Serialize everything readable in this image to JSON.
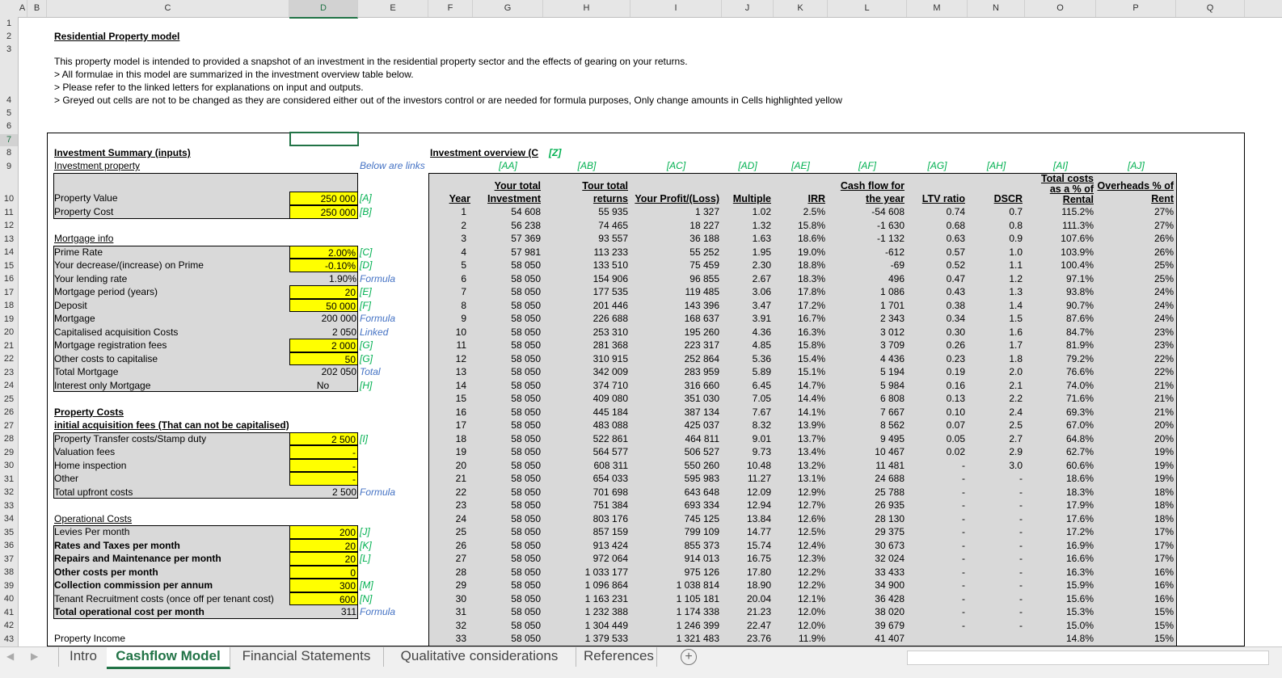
{
  "columns": [
    "A",
    "B",
    "C",
    "D",
    "E",
    "F",
    "G",
    "H",
    "I",
    "J",
    "K",
    "L",
    "M",
    "N",
    "O",
    "P",
    "Q"
  ],
  "title": "Residential Property model",
  "description": [
    "This property model is intended to provided a snapshot of an investment in the residential property sector and the effects of gearing on your returns.",
    "> All formulae in this model are summarized in the investment overview table below.",
    "> Please refer to the linked letters for explanations on input and outputs.",
    "> Greyed out cells are not to be changed as they are considered either out of the investors control or are needed for formula purposes, Only change amounts in Cells highlighted yellow"
  ],
  "left": {
    "heading": "Investment Summary (inputs)",
    "links_note": "Below are links",
    "rows": [
      {
        "row": 9,
        "label": "Investment property",
        "u": true
      },
      {
        "row": 10,
        "label": "Property Value",
        "value": "250 000",
        "note": "[A]",
        "y": true
      },
      {
        "row": 11,
        "label": "Property Cost",
        "value": "250 000",
        "note": "[B]",
        "y": true
      },
      {
        "row": 13,
        "label": "Mortgage info",
        "u": true
      },
      {
        "row": 14,
        "label": "Prime Rate",
        "value": "2.00%",
        "note": "[C]",
        "y": true
      },
      {
        "row": 15,
        "label": "Your decrease/(increase) on Prime",
        "value": "-0.10%",
        "note": "[D]",
        "y": true
      },
      {
        "row": 16,
        "label": "Your lending rate",
        "value": "1.90%",
        "note": "Formula",
        "nb": true
      },
      {
        "row": 17,
        "label": "Mortgage period (years)",
        "value": "20",
        "note": "[E]",
        "y": true
      },
      {
        "row": 18,
        "label": "Deposit",
        "value": "50 000",
        "note": "[F]",
        "y": true
      },
      {
        "row": 19,
        "label": "Mortgage",
        "value": "200 000",
        "note": "Formula",
        "nb": true
      },
      {
        "row": 20,
        "label": "Capitalised acquisition Costs",
        "value": "2 050",
        "note": "Linked",
        "nb": true
      },
      {
        "row": 21,
        "label": "Mortgage registration fees",
        "value": "2 000",
        "note": "[G]",
        "y": true
      },
      {
        "row": 22,
        "label": "Other costs to capitalise",
        "value": "50",
        "note": "[G]",
        "y": true
      },
      {
        "row": 23,
        "label": "Total Mortgage",
        "value": "202 050",
        "note": "Total",
        "nb": true
      },
      {
        "row": 24,
        "label": "Interest only Mortgage",
        "value": "No",
        "note": "[H]",
        "c": true
      },
      {
        "row": 26,
        "label": "Property Costs",
        "u": true,
        "b": true
      },
      {
        "row": 27,
        "label": "initial acquisition fees (That can not be capitalised)",
        "u": true
      },
      {
        "row": 28,
        "label": "Property Transfer costs/Stamp duty",
        "value": "2 500",
        "note": "[I]",
        "y": true
      },
      {
        "row": 29,
        "label": "Valuation fees",
        "value": "-",
        "y": true
      },
      {
        "row": 30,
        "label": "Home inspection",
        "value": "-",
        "y": true
      },
      {
        "row": 31,
        "label": "Other",
        "value": "-",
        "y": true
      },
      {
        "row": 32,
        "label": "Total upfront costs",
        "value": "2 500",
        "note": "Formula",
        "nb": true
      },
      {
        "row": 34,
        "label": "Operational Costs",
        "u": true
      },
      {
        "row": 35,
        "label": "Levies Per month",
        "value": "200",
        "note": "[J]",
        "y": true
      },
      {
        "row": 36,
        "label": "Rates and Taxes per month",
        "value": "20",
        "note": "[K]",
        "y": true
      },
      {
        "row": 37,
        "label": "Repairs and Maintenance per month",
        "value": "20",
        "note": "[L]",
        "y": true
      },
      {
        "row": 38,
        "label": "Other costs per month",
        "value": "0",
        "y": true
      },
      {
        "row": 39,
        "label": "Collection commission per annum",
        "value": "300",
        "note": "[M]",
        "y": true
      },
      {
        "row": 40,
        "label": "Tenant Recruitment costs (once off per tenant cost)",
        "value": "600",
        "note": "[N]",
        "y": true
      },
      {
        "row": 41,
        "label": "Total operational cost per month",
        "value": "311",
        "note": "Formula",
        "nb": true
      },
      {
        "row": 43,
        "label": "Property Income"
      }
    ]
  },
  "overview": {
    "heading": "Investment overview (C",
    "heading_ref": "[Z]",
    "refs": [
      "",
      "[AA]",
      "[AB]",
      "[AC]",
      "[AD]",
      "[AE]",
      "[AF]",
      "[AG]",
      "[AH]",
      "[AI]",
      "[AJ]"
    ],
    "headers": [
      "Year",
      "Your total\nInvestment",
      "Tour total\nreturns",
      "Your Profit/(Loss)",
      "Multiple",
      "IRR",
      "Cash flow for\nthe year",
      "LTV ratio",
      "DSCR",
      "Total costs\nas a % of\nRental",
      "Overheads % of\nRent"
    ],
    "rows": [
      [
        "1",
        "54 608",
        "55 935",
        "1 327",
        "1.02",
        "2.5%",
        "-54 608",
        "0.74",
        "0.7",
        "115.2%",
        "27%"
      ],
      [
        "2",
        "56 238",
        "74 465",
        "18 227",
        "1.32",
        "15.8%",
        "-1 630",
        "0.68",
        "0.8",
        "111.3%",
        "27%"
      ],
      [
        "3",
        "57 369",
        "93 557",
        "36 188",
        "1.63",
        "18.6%",
        "-1 132",
        "0.63",
        "0.9",
        "107.6%",
        "26%"
      ],
      [
        "4",
        "57 981",
        "113 233",
        "55 252",
        "1.95",
        "19.0%",
        "-612",
        "0.57",
        "1.0",
        "103.9%",
        "26%"
      ],
      [
        "5",
        "58 050",
        "133 510",
        "75 459",
        "2.30",
        "18.8%",
        "-69",
        "0.52",
        "1.1",
        "100.4%",
        "25%"
      ],
      [
        "6",
        "58 050",
        "154 906",
        "96 855",
        "2.67",
        "18.3%",
        "496",
        "0.47",
        "1.2",
        "97.1%",
        "25%"
      ],
      [
        "7",
        "58 050",
        "177 535",
        "119 485",
        "3.06",
        "17.8%",
        "1 086",
        "0.43",
        "1.3",
        "93.8%",
        "24%"
      ],
      [
        "8",
        "58 050",
        "201 446",
        "143 396",
        "3.47",
        "17.2%",
        "1 701",
        "0.38",
        "1.4",
        "90.7%",
        "24%"
      ],
      [
        "9",
        "58 050",
        "226 688",
        "168 637",
        "3.91",
        "16.7%",
        "2 343",
        "0.34",
        "1.5",
        "87.6%",
        "24%"
      ],
      [
        "10",
        "58 050",
        "253 310",
        "195 260",
        "4.36",
        "16.3%",
        "3 012",
        "0.30",
        "1.6",
        "84.7%",
        "23%"
      ],
      [
        "11",
        "58 050",
        "281 368",
        "223 317",
        "4.85",
        "15.8%",
        "3 709",
        "0.26",
        "1.7",
        "81.9%",
        "23%"
      ],
      [
        "12",
        "58 050",
        "310 915",
        "252 864",
        "5.36",
        "15.4%",
        "4 436",
        "0.23",
        "1.8",
        "79.2%",
        "22%"
      ],
      [
        "13",
        "58 050",
        "342 009",
        "283 959",
        "5.89",
        "15.1%",
        "5 194",
        "0.19",
        "2.0",
        "76.6%",
        "22%"
      ],
      [
        "14",
        "58 050",
        "374 710",
        "316 660",
        "6.45",
        "14.7%",
        "5 984",
        "0.16",
        "2.1",
        "74.0%",
        "21%"
      ],
      [
        "15",
        "58 050",
        "409 080",
        "351 030",
        "7.05",
        "14.4%",
        "6 808",
        "0.13",
        "2.2",
        "71.6%",
        "21%"
      ],
      [
        "16",
        "58 050",
        "445 184",
        "387 134",
        "7.67",
        "14.1%",
        "7 667",
        "0.10",
        "2.4",
        "69.3%",
        "21%"
      ],
      [
        "17",
        "58 050",
        "483 088",
        "425 037",
        "8.32",
        "13.9%",
        "8 562",
        "0.07",
        "2.5",
        "67.0%",
        "20%"
      ],
      [
        "18",
        "58 050",
        "522 861",
        "464 811",
        "9.01",
        "13.7%",
        "9 495",
        "0.05",
        "2.7",
        "64.8%",
        "20%"
      ],
      [
        "19",
        "58 050",
        "564 577",
        "506 527",
        "9.73",
        "13.4%",
        "10 467",
        "0.02",
        "2.9",
        "62.7%",
        "19%"
      ],
      [
        "20",
        "58 050",
        "608 311",
        "550 260",
        "10.48",
        "13.2%",
        "11 481",
        "-",
        "3.0",
        "60.6%",
        "19%"
      ],
      [
        "21",
        "58 050",
        "654 033",
        "595 983",
        "11.27",
        "13.1%",
        "24 688",
        "-",
        "-",
        "18.6%",
        "19%"
      ],
      [
        "22",
        "58 050",
        "701 698",
        "643 648",
        "12.09",
        "12.9%",
        "25 788",
        "-",
        "-",
        "18.3%",
        "18%"
      ],
      [
        "23",
        "58 050",
        "751 384",
        "693 334",
        "12.94",
        "12.7%",
        "26 935",
        "-",
        "-",
        "17.9%",
        "18%"
      ],
      [
        "24",
        "58 050",
        "803 176",
        "745 125",
        "13.84",
        "12.6%",
        "28 130",
        "-",
        "-",
        "17.6%",
        "18%"
      ],
      [
        "25",
        "58 050",
        "857 159",
        "799 109",
        "14.77",
        "12.5%",
        "29 375",
        "-",
        "-",
        "17.2%",
        "17%"
      ],
      [
        "26",
        "58 050",
        "913 424",
        "855 373",
        "15.74",
        "12.4%",
        "30 673",
        "-",
        "-",
        "16.9%",
        "17%"
      ],
      [
        "27",
        "58 050",
        "972 064",
        "914 013",
        "16.75",
        "12.3%",
        "32 024",
        "-",
        "-",
        "16.6%",
        "17%"
      ],
      [
        "28",
        "58 050",
        "1 033 177",
        "975 126",
        "17.80",
        "12.2%",
        "33 433",
        "-",
        "-",
        "16.3%",
        "16%"
      ],
      [
        "29",
        "58 050",
        "1 096 864",
        "1 038 814",
        "18.90",
        "12.2%",
        "34 900",
        "-",
        "-",
        "15.9%",
        "16%"
      ],
      [
        "30",
        "58 050",
        "1 163 231",
        "1 105 181",
        "20.04",
        "12.1%",
        "36 428",
        "-",
        "-",
        "15.6%",
        "16%"
      ],
      [
        "31",
        "58 050",
        "1 232 388",
        "1 174 338",
        "21.23",
        "12.0%",
        "38 020",
        "-",
        "-",
        "15.3%",
        "15%"
      ],
      [
        "32",
        "58 050",
        "1 304 449",
        "1 246 399",
        "22.47",
        "12.0%",
        "39 679",
        "-",
        "-",
        "15.0%",
        "15%"
      ],
      [
        "33",
        "58 050",
        "1 379 533",
        "1 321 483",
        "23.76",
        "11.9%",
        "41 407",
        "",
        "",
        "14.8%",
        "15%"
      ]
    ]
  },
  "tabs": [
    {
      "label": "Intro"
    },
    {
      "label": "Cashflow Model",
      "active": true
    },
    {
      "label": "Financial Statements"
    },
    {
      "label": "Qualitative considerations"
    },
    {
      "label": "References"
    }
  ],
  "add_sheet_icon": "plus-circle-icon",
  "colors": {
    "input": "#ffff00",
    "locked": "#d9d9d9",
    "ref_note": "#00b050",
    "formula_note": "#4472c4",
    "active_tab": "#217346"
  }
}
